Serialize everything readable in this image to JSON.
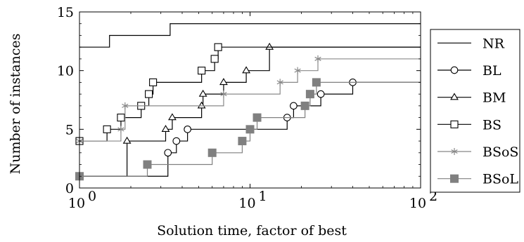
{
  "chart_data": {
    "type": "line",
    "xlabel": "Solution time, factor of best",
    "ylabel": "Number of instances",
    "xscale": "log",
    "xlim": [
      1,
      100
    ],
    "ylim": [
      0,
      15
    ],
    "xticks": [
      {
        "value": 1,
        "label": "10",
        "exp": "0"
      },
      {
        "value": 10,
        "label": "10",
        "exp": "1"
      },
      {
        "value": 100,
        "label": "10",
        "exp": "2"
      }
    ],
    "yticks": [
      0,
      5,
      10,
      15
    ],
    "legend_position": "right",
    "series": [
      {
        "name": "NR",
        "color": "#000000",
        "marker": "none",
        "points": [
          [
            1,
            12
          ],
          [
            1.5,
            13
          ],
          [
            3.4,
            14
          ],
          [
            100,
            14
          ]
        ]
      },
      {
        "name": "BL",
        "color": "#000000",
        "marker": "circle",
        "points": [
          [
            1,
            1
          ],
          [
            3.3,
            3
          ],
          [
            3.7,
            4
          ],
          [
            4.3,
            5
          ],
          [
            16.5,
            6
          ],
          [
            18,
            7
          ],
          [
            26,
            8
          ],
          [
            40,
            9
          ],
          [
            100,
            9
          ]
        ]
      },
      {
        "name": "BM",
        "color": "#000000",
        "marker": "triangle",
        "points": [
          [
            1,
            1
          ],
          [
            1.9,
            4
          ],
          [
            3.2,
            5
          ],
          [
            3.5,
            6
          ],
          [
            5.2,
            7
          ],
          [
            5.3,
            8
          ],
          [
            7,
            9
          ],
          [
            9.5,
            10
          ],
          [
            13,
            12
          ],
          [
            100,
            12
          ]
        ]
      },
      {
        "name": "BS",
        "color": "#000000",
        "marker": "square",
        "points": [
          [
            1,
            4
          ],
          [
            1.45,
            5
          ],
          [
            1.75,
            6
          ],
          [
            2.3,
            7
          ],
          [
            2.55,
            8
          ],
          [
            2.7,
            9
          ],
          [
            5.2,
            10
          ],
          [
            6.2,
            11
          ],
          [
            6.5,
            12
          ],
          [
            100,
            12
          ]
        ]
      },
      {
        "name": "BSoS",
        "color": "#888888",
        "marker": "star",
        "points": [
          [
            1,
            4
          ],
          [
            1.75,
            5
          ],
          [
            1.85,
            7
          ],
          [
            7,
            8
          ],
          [
            15,
            9
          ],
          [
            19,
            10
          ],
          [
            25,
            11
          ],
          [
            100,
            11
          ]
        ]
      },
      {
        "name": "BSoL",
        "color": "#808080",
        "marker": "filled-square",
        "points": [
          [
            1,
            1
          ],
          [
            2.5,
            2
          ],
          [
            6,
            3
          ],
          [
            9,
            4
          ],
          [
            10,
            5
          ],
          [
            11,
            6
          ],
          [
            21,
            7
          ],
          [
            22.5,
            8
          ],
          [
            24.5,
            9
          ],
          [
            100,
            9
          ]
        ]
      }
    ]
  }
}
